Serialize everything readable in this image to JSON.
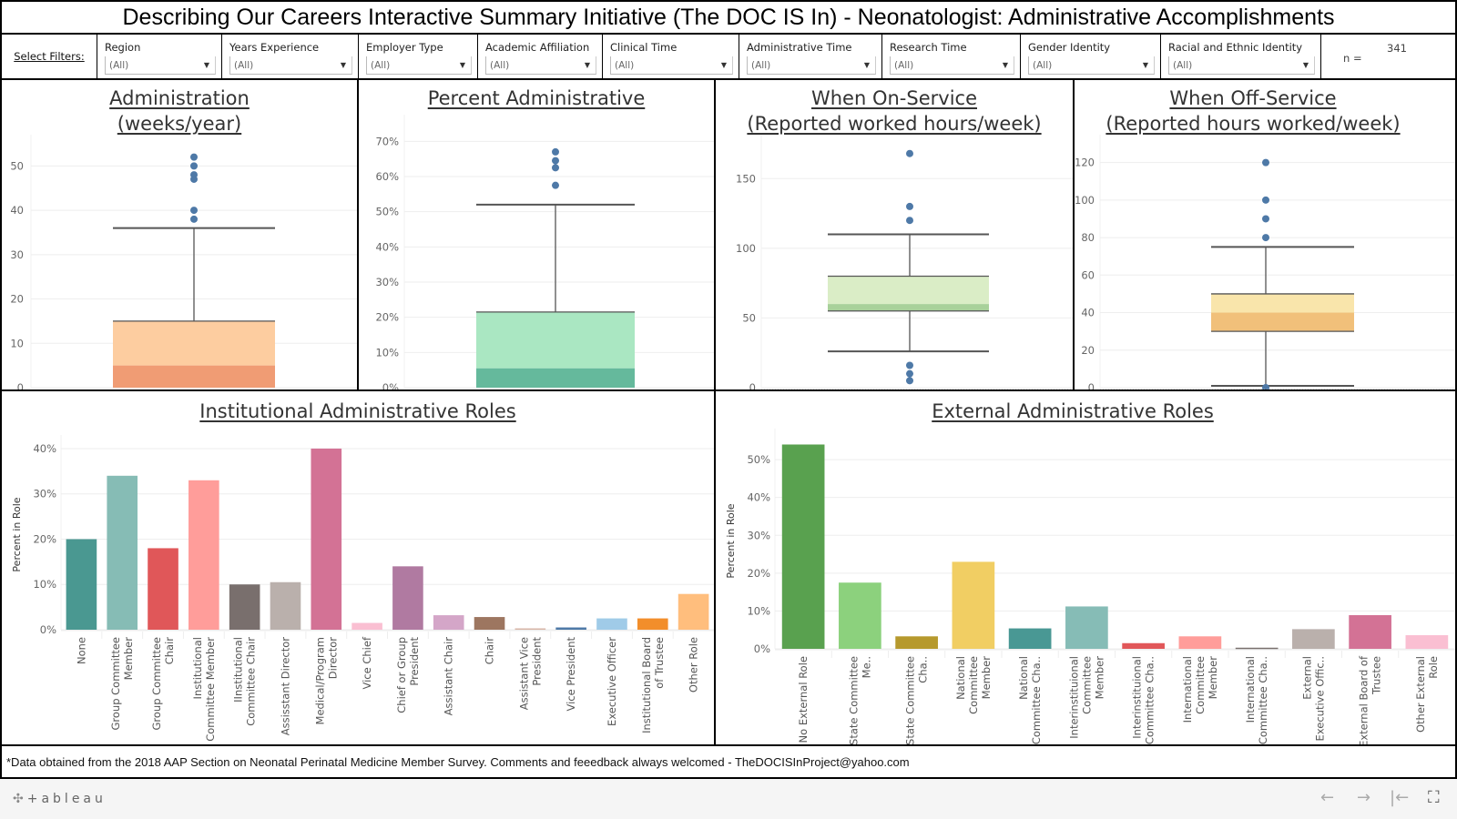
{
  "title": "Describing Our Careers Interactive Summary Initiative (The DOC IS In) - Neonatologist: Administrative Accomplishments",
  "filters": {
    "label": "Select Filters:",
    "items": [
      {
        "name": "Region",
        "value": "(All)"
      },
      {
        "name": "Years Experience",
        "value": "(All)"
      },
      {
        "name": "Employer Type",
        "value": "(All)"
      },
      {
        "name": "Academic Affiliation",
        "value": "(All)"
      },
      {
        "name": "Clinical Time",
        "value": "(All)"
      },
      {
        "name": "Administrative Time",
        "value": "(All)"
      },
      {
        "name": "Research Time",
        "value": "(All)"
      },
      {
        "name": "Gender Identity",
        "value": "(All)"
      },
      {
        "name": "Racial and Ethnic Identity",
        "value": "(All)"
      }
    ],
    "n_label": "n =",
    "n_value": "341"
  },
  "icons": {
    "dropdown": "▼",
    "back": "←",
    "forward": "→",
    "first": "|←",
    "fullscreen": "⛶",
    "logo_mark": "✣"
  },
  "footer": {
    "note": "*Data obtained from the 2018 AAP Section on Neonatal Perinatal Medicine Member Survey.  Comments and feeedback always welcomed - TheDOCISInProject@yahoo.com"
  },
  "toolbar": {
    "logo_text": "+ableau"
  },
  "chart_data": [
    {
      "id": "administration-weeks",
      "type": "box",
      "title_lines": [
        "Administration",
        "(weeks/year)"
      ],
      "ylim": [
        0,
        55
      ],
      "ticks": [
        0,
        10,
        20,
        30,
        40,
        50
      ],
      "tick_suffix": "",
      "grid": true,
      "whisker_low": 0,
      "q1": 0,
      "median": 5,
      "q3": 15,
      "whisker_high": 36,
      "outliers": [
        38,
        40,
        47,
        48,
        50,
        52
      ],
      "colors": {
        "upper": "#fdcda0",
        "lower": "#f09c74"
      }
    },
    {
      "id": "percent-administrative",
      "type": "box",
      "title_lines": [
        "Percent Administrative"
      ],
      "ylim": [
        0,
        75
      ],
      "ticks": [
        0,
        10,
        20,
        30,
        40,
        50,
        60,
        70
      ],
      "tick_suffix": "%",
      "grid": true,
      "whisker_low": 0,
      "q1": 0,
      "median": 5.5,
      "q3": 21.5,
      "whisker_high": 52,
      "outliers": [
        57.5,
        62.5,
        64.5,
        67
      ],
      "colors": {
        "upper": "#aae7c2",
        "lower": "#65b99c"
      }
    },
    {
      "id": "on-service-hours",
      "type": "box",
      "title_lines": [
        "When On-Service",
        "(Reported worked hours/week)"
      ],
      "ylim": [
        0,
        175
      ],
      "ticks": [
        0,
        50,
        100,
        150
      ],
      "tick_suffix": "",
      "grid": true,
      "whisker_low": 26,
      "q1": 55,
      "median": 60,
      "q3": 80,
      "whisker_high": 110,
      "outliers": [
        5,
        10,
        16,
        120,
        130,
        168
      ],
      "colors": {
        "upper": "#daedc6",
        "lower": "#a8d19a"
      }
    },
    {
      "id": "off-service-hours",
      "type": "box",
      "title_lines": [
        "When Off-Service",
        "(Reported hours worked/week)"
      ],
      "ylim": [
        0,
        130
      ],
      "ticks": [
        0,
        20,
        40,
        60,
        80,
        100,
        120
      ],
      "tick_suffix": "",
      "grid": true,
      "whisker_low": 1,
      "q1": 30,
      "median": 40,
      "q3": 50,
      "whisker_high": 75,
      "outliers": [
        0,
        80,
        90,
        100,
        120
      ],
      "colors": {
        "upper": "#f9e5ab",
        "lower": "#f1c07a"
      }
    },
    {
      "id": "institutional-roles",
      "type": "bar",
      "title": "Institutional Administrative Roles",
      "ylabel": "Percent in Role",
      "ylim": [
        0,
        42
      ],
      "ticks": [
        0,
        10,
        20,
        30,
        40
      ],
      "tick_suffix": "%",
      "grid": true,
      "categories": [
        [
          "None"
        ],
        [
          "Group Committee",
          "Member"
        ],
        [
          "Group Committee",
          "Chair"
        ],
        [
          "Institutional",
          "Committee Member"
        ],
        [
          "IInstitutional",
          "Committee Chair"
        ],
        [
          "Assisstant Director"
        ],
        [
          "Medical/Program",
          "Director"
        ],
        [
          "Vice Chief"
        ],
        [
          "Chief or Group",
          "President"
        ],
        [
          "Assistant Chair"
        ],
        [
          "Chair"
        ],
        [
          "Assistant Vice",
          "President"
        ],
        [
          "Vice President"
        ],
        [
          "Executive Officer"
        ],
        [
          "Institutional Board",
          "of Trustee"
        ],
        [
          "Other Role"
        ]
      ],
      "values": [
        20,
        34,
        18,
        33,
        10,
        10.5,
        40,
        1.5,
        14,
        3.2,
        2.8,
        0.3,
        0.5,
        2.5,
        2.5,
        7.9
      ],
      "colors": [
        "#4a9891",
        "#86bcb5",
        "#e05759",
        "#ff9d9a",
        "#796f6d",
        "#bab0ac",
        "#d37295",
        "#fabfd2",
        "#b07aa1",
        "#d4a6c8",
        "#9d7660",
        "#d7b5a6",
        "#4e79a7",
        "#a0cbe8",
        "#f28e2b",
        "#ffbe7d"
      ]
    },
    {
      "id": "external-roles",
      "type": "bar",
      "title": "External Administrative Roles",
      "ylabel": "Percent in Role",
      "ylim": [
        0,
        57
      ],
      "ticks": [
        0,
        10,
        20,
        30,
        40,
        50
      ],
      "tick_suffix": "%",
      "grid": true,
      "categories": [
        [
          "No External Role"
        ],
        [
          "State Committee",
          "Me.."
        ],
        [
          "State Committee",
          "Cha.."
        ],
        [
          "National",
          "Committee",
          "Member"
        ],
        [
          "National",
          "Committee Cha.."
        ],
        [
          "Interinstituional",
          "Committee",
          "Member"
        ],
        [
          "Interinstituional",
          "Committee Cha.."
        ],
        [
          "International",
          "Committee",
          "Member"
        ],
        [
          "International",
          "Committee Cha.."
        ],
        [
          "External",
          "Executive Offic.."
        ],
        [
          "External Board of",
          "Trustee"
        ],
        [
          "Other External",
          "Role"
        ]
      ],
      "values": [
        54,
        17.5,
        3.3,
        23,
        5.4,
        11.2,
        1.5,
        3.3,
        0.3,
        5.2,
        8.9,
        3.6
      ],
      "colors": [
        "#59a14f",
        "#8cd17d",
        "#b6992d",
        "#f1ce63",
        "#499894",
        "#86bcb6",
        "#e15759",
        "#ff9d9a",
        "#79706e",
        "#bab0ac",
        "#d37295",
        "#fabfd2"
      ]
    }
  ]
}
